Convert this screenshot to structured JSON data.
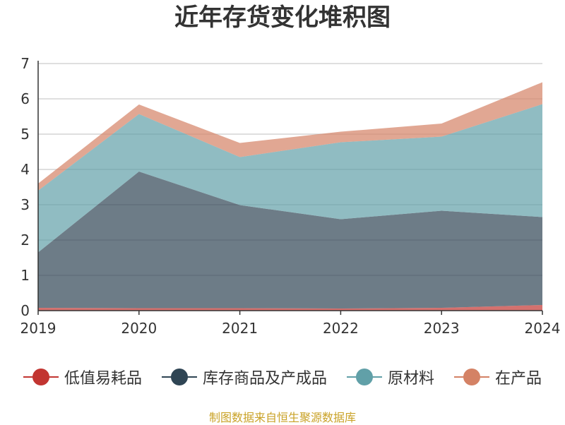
{
  "chart_data": {
    "type": "area",
    "stacked": true,
    "title": "近年存货变化堆积图",
    "xlabel": "",
    "ylabel": "",
    "x": [
      "2019",
      "2020",
      "2021",
      "2022",
      "2023",
      "2024"
    ],
    "ylim": [
      0,
      7
    ],
    "yticks": [
      "0",
      "1",
      "2",
      "3",
      "4",
      "5",
      "6",
      "7"
    ],
    "grid": true,
    "legend_position": "bottom",
    "series": [
      {
        "name": "低值易耗品",
        "color": "#c23531",
        "values": [
          0.08,
          0.07,
          0.07,
          0.06,
          0.08,
          0.16
        ]
      },
      {
        "name": "库存商品及产成品",
        "color": "#2f4554",
        "values": [
          1.57,
          3.87,
          2.92,
          2.53,
          2.75,
          2.49
        ]
      },
      {
        "name": "原材料",
        "color": "#61a0a8",
        "values": [
          1.75,
          1.63,
          1.36,
          2.18,
          2.1,
          3.2
        ]
      },
      {
        "name": "在产品",
        "color": "#d48265",
        "values": [
          0.2,
          0.27,
          0.4,
          0.3,
          0.37,
          0.62
        ]
      }
    ],
    "source": "制图数据来自恒生聚源数据库"
  }
}
